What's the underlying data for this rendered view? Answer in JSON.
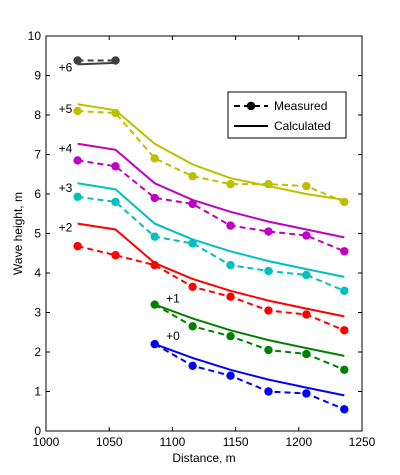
{
  "chart_data": {
    "type": "line",
    "title": "",
    "xlabel": "Distance, m",
    "ylabel": "Wave height, m",
    "xlim": [
      1000,
      1250
    ],
    "ylim": [
      0,
      10
    ],
    "xticks": [
      1000,
      1050,
      1100,
      1150,
      1200,
      1250
    ],
    "yticks": [
      0,
      1,
      2,
      3,
      4,
      5,
      6,
      7,
      8,
      9,
      10
    ],
    "grid": false,
    "legend": {
      "placement": "upper-right-inside",
      "entries": [
        {
          "label": "Measured",
          "style": "dashed-marker"
        },
        {
          "label": "Calculated",
          "style": "solid"
        }
      ]
    },
    "series": [
      {
        "offset_label": "+0",
        "color": "#0000ff",
        "label_at": [
          1095,
          2.4
        ],
        "measured": {
          "x": [
            1086,
            1116,
            1146,
            1176,
            1206,
            1236
          ],
          "y": [
            2.2,
            1.65,
            1.4,
            1.0,
            0.95,
            0.55
          ]
        },
        "calculated": {
          "x": [
            1086,
            1116,
            1146,
            1176,
            1206,
            1236
          ],
          "y": [
            2.2,
            1.85,
            1.55,
            1.3,
            1.1,
            0.9
          ]
        }
      },
      {
        "offset_label": "+1",
        "color": "#008000",
        "label_at": [
          1095,
          3.35
        ],
        "measured": {
          "x": [
            1086,
            1116,
            1146,
            1176,
            1206,
            1236
          ],
          "y": [
            3.2,
            2.65,
            2.4,
            2.05,
            1.95,
            1.55
          ]
        },
        "calculated": {
          "x": [
            1086,
            1116,
            1146,
            1176,
            1206,
            1236
          ],
          "y": [
            3.2,
            2.85,
            2.55,
            2.3,
            2.1,
            1.9
          ]
        }
      },
      {
        "offset_label": "+2",
        "color": "#ff0000",
        "label_at": [
          1010,
          5.15
        ],
        "measured": {
          "x": [
            1025,
            1055,
            1086,
            1116,
            1146,
            1176,
            1206,
            1236
          ],
          "y": [
            4.68,
            4.45,
            4.2,
            3.65,
            3.4,
            3.05,
            2.95,
            2.55
          ]
        },
        "calculated": {
          "x": [
            1025,
            1055,
            1086,
            1116,
            1146,
            1176,
            1206,
            1236
          ],
          "y": [
            5.25,
            5.1,
            4.25,
            3.85,
            3.55,
            3.3,
            3.1,
            2.9
          ]
        }
      },
      {
        "offset_label": "+3",
        "color": "#00bfbf",
        "label_at": [
          1010,
          6.15
        ],
        "measured": {
          "x": [
            1025,
            1055,
            1086,
            1116,
            1146,
            1176,
            1206,
            1236
          ],
          "y": [
            5.93,
            5.8,
            4.92,
            4.75,
            4.2,
            4.05,
            3.95,
            3.55
          ]
        },
        "calculated": {
          "x": [
            1025,
            1055,
            1086,
            1116,
            1146,
            1176,
            1206,
            1236
          ],
          "y": [
            6.27,
            6.12,
            5.25,
            4.85,
            4.55,
            4.3,
            4.1,
            3.9
          ]
        }
      },
      {
        "offset_label": "+4",
        "color": "#bf00bf",
        "label_at": [
          1010,
          7.15
        ],
        "measured": {
          "x": [
            1025,
            1055,
            1086,
            1116,
            1146,
            1176,
            1206,
            1236
          ],
          "y": [
            6.85,
            6.7,
            5.9,
            5.75,
            5.2,
            5.05,
            4.95,
            4.55
          ]
        },
        "calculated": {
          "x": [
            1025,
            1055,
            1086,
            1116,
            1146,
            1176,
            1206,
            1236
          ],
          "y": [
            7.27,
            7.12,
            6.27,
            5.85,
            5.55,
            5.3,
            5.1,
            4.9
          ]
        }
      },
      {
        "offset_label": "+5",
        "color": "#bfbf00",
        "label_at": [
          1010,
          8.15
        ],
        "measured": {
          "x": [
            1025,
            1055,
            1086,
            1116,
            1146,
            1176,
            1206,
            1236
          ],
          "y": [
            8.1,
            8.05,
            6.9,
            6.45,
            6.25,
            6.25,
            6.2,
            5.8
          ]
        },
        "calculated": {
          "x": [
            1025,
            1055,
            1086,
            1116,
            1146,
            1176,
            1206,
            1236
          ],
          "y": [
            8.27,
            8.12,
            7.27,
            6.75,
            6.4,
            6.2,
            6.0,
            5.85
          ]
        }
      },
      {
        "offset_label": "+6",
        "color": "#404040",
        "label_at": [
          1010,
          9.2
        ],
        "measured": {
          "x": [
            1025,
            1055
          ],
          "y": [
            9.38,
            9.38
          ]
        },
        "calculated": {
          "x": [
            1025,
            1055
          ],
          "y": [
            9.28,
            9.32
          ]
        }
      }
    ]
  }
}
